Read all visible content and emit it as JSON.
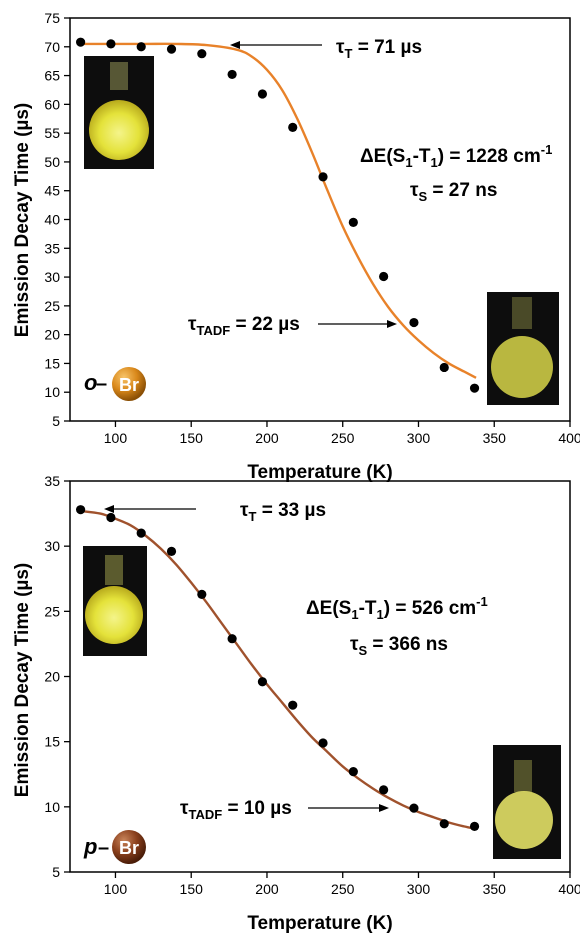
{
  "chart_data": [
    {
      "type": "scatter",
      "title": "",
      "xlabel": "Temperature (K)",
      "ylabel": "Emission Decay Time (µs)",
      "xlim": [
        70,
        400
      ],
      "ylim": [
        5,
        75
      ],
      "xticks": [
        100,
        150,
        200,
        250,
        300,
        350,
        400
      ],
      "yticks": [
        5,
        10,
        15,
        20,
        25,
        30,
        35,
        40,
        45,
        50,
        55,
        60,
        65,
        70,
        75
      ],
      "grid": false,
      "series": [
        {
          "kind": "points",
          "x": [
            77,
            97,
            117,
            137,
            157,
            177,
            197,
            217,
            237,
            257,
            277,
            297,
            317,
            337
          ],
          "y": [
            70.8,
            70.5,
            70.0,
            69.6,
            68.8,
            65.2,
            61.8,
            56.0,
            47.4,
            39.5,
            30.1,
            22.1,
            14.3,
            10.7
          ]
        },
        {
          "kind": "fit",
          "color": "#E8822A",
          "x": [
            77,
            100,
            120,
            140,
            160,
            180,
            190,
            200,
            210,
            220,
            230,
            240,
            250,
            260,
            270,
            280,
            290,
            300,
            310,
            320,
            330,
            338
          ],
          "y": [
            70.5,
            70.5,
            70.5,
            70.5,
            70.3,
            69.5,
            68.3,
            66.0,
            62.5,
            57.5,
            51.5,
            45.0,
            38.8,
            33.5,
            28.8,
            24.8,
            21.6,
            19.0,
            16.8,
            15.0,
            13.6,
            12.5
          ]
        }
      ],
      "annotations": {
        "tau_t": {
          "sym": "τ",
          "sub": "T",
          "rest": " = 71 µs"
        },
        "delta_e": {
          "pre": "ΔE(S",
          "s1": "1",
          "mid": "-T",
          "t1": "1",
          "eq": ") = 1228 cm",
          "sup": "-1"
        },
        "tau_s": {
          "sym": "τ",
          "sub": "S",
          "rest": " = 27 ns"
        },
        "tau_tadf": {
          "sym": "τ",
          "sub": "TADF",
          "rest": " = 22 µs"
        },
        "substituent": {
          "prefix": "o",
          "dash": "–",
          "atom": "Br"
        }
      }
    },
    {
      "type": "scatter",
      "title": "",
      "xlabel": "Temperature (K)",
      "ylabel": "Emission Decay Time (µs)",
      "xlim": [
        70,
        400
      ],
      "ylim": [
        5,
        35
      ],
      "xticks": [
        100,
        150,
        200,
        250,
        300,
        350,
        400
      ],
      "yticks": [
        5,
        10,
        15,
        20,
        25,
        30,
        35
      ],
      "grid": false,
      "series": [
        {
          "kind": "points",
          "x": [
            77,
            97,
            117,
            137,
            157,
            177,
            197,
            217,
            237,
            257,
            277,
            297,
            317,
            337
          ],
          "y": [
            32.8,
            32.2,
            31.0,
            29.6,
            26.3,
            22.9,
            19.6,
            17.8,
            14.9,
            12.7,
            11.3,
            9.9,
            8.7,
            8.5
          ]
        },
        {
          "kind": "fit",
          "color": "#A0522D",
          "x": [
            77,
            90,
            100,
            110,
            120,
            130,
            140,
            150,
            160,
            170,
            180,
            190,
            200,
            210,
            220,
            230,
            240,
            250,
            260,
            270,
            280,
            290,
            300,
            310,
            320,
            330,
            338
          ],
          "y": [
            32.7,
            32.5,
            32.1,
            31.6,
            30.8,
            29.8,
            28.6,
            27.2,
            25.7,
            24.1,
            22.5,
            20.9,
            19.4,
            18.0,
            16.6,
            15.3,
            14.2,
            13.1,
            12.2,
            11.4,
            10.7,
            10.1,
            9.6,
            9.2,
            8.8,
            8.5,
            8.3
          ]
        }
      ],
      "annotations": {
        "tau_t": {
          "sym": "τ",
          "sub": "T",
          "rest": " = 33 µs"
        },
        "delta_e": {
          "pre": "ΔE(S",
          "s1": "1",
          "mid": "-T",
          "t1": "1",
          "eq": ") = 526 cm",
          "sup": "-1"
        },
        "tau_s": {
          "sym": "τ",
          "sub": "S",
          "rest": " = 366 ns"
        },
        "tau_tadf": {
          "sym": "τ",
          "sub": "TADF",
          "rest": " = 10 µs"
        },
        "substituent": {
          "prefix": "p",
          "dash": "–",
          "atom": "Br"
        }
      }
    }
  ]
}
